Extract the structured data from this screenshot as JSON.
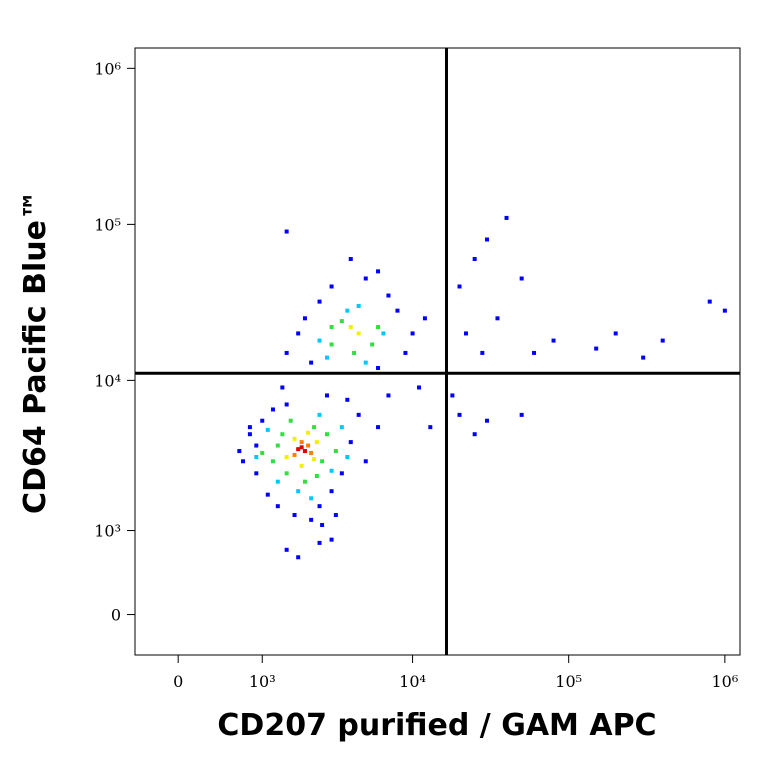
{
  "chart_data": {
    "type": "scatter",
    "x_label": "CD207 purified / GAM APC",
    "y_label": "CD64 Pacific Blue™",
    "scale": "biexponential",
    "xlim": [
      -430,
      1250000
    ],
    "ylim": [
      -400,
      1350000
    ],
    "xticks": [
      0,
      {
        "value": 1000,
        "label": "10³"
      },
      {
        "value": 10000,
        "label": "10⁴"
      },
      {
        "value": 100000,
        "label": "10⁵"
      },
      {
        "value": 1000000,
        "label": "10⁶"
      }
    ],
    "yticks": [
      0,
      {
        "value": 1000,
        "label": "10³"
      },
      {
        "value": 10000,
        "label": "10⁴"
      },
      {
        "value": 100000,
        "label": "10⁵"
      },
      {
        "value": 1000000,
        "label": "10⁶"
      }
    ],
    "gates": {
      "x": 16500,
      "y": 11100
    },
    "series": [
      {
        "color": "#0000ff",
        "x": [
          700,
          800,
          900,
          1000,
          1100,
          1200,
          900,
          1300,
          1500,
          2500,
          3000,
          3500,
          4000,
          4500,
          3800,
          2800,
          2200,
          1700,
          1400,
          800,
          650,
          2600,
          3200,
          5000,
          6000,
          7000,
          1500,
          2000,
          2500,
          3000,
          5000,
          7000,
          8000,
          9000,
          10000,
          12000,
          1800,
          2200,
          6000,
          11000,
          13000,
          4000,
          6000,
          1500,
          20000,
          25000,
          30000,
          40000,
          35000,
          28000,
          22000,
          50000,
          60000,
          80000,
          150000,
          200000,
          300000,
          400000,
          800000,
          1000000,
          20000,
          30000,
          50000,
          25000,
          18000,
          1500,
          2500,
          3000,
          1800
        ],
        "y": [
          3000,
          4500,
          2500,
          5500,
          1800,
          6500,
          3800,
          1500,
          7000,
          1500,
          1900,
          2500,
          4000,
          6000,
          7500,
          8000,
          1200,
          1300,
          9000,
          5000,
          3500,
          1100,
          1300,
          3000,
          5000,
          8000,
          15000,
          25000,
          32000,
          40000,
          45000,
          35000,
          28000,
          15000,
          20000,
          25000,
          20000,
          13000,
          12000,
          9000,
          5000,
          60000,
          50000,
          90000,
          40000,
          60000,
          80000,
          110000,
          25000,
          15000,
          20000,
          45000,
          15000,
          18000,
          16000,
          20000,
          14000,
          18000,
          32000,
          28000,
          6000,
          5500,
          6000,
          4500,
          8000,
          700,
          800,
          850,
          600
        ]
      },
      {
        "color": "#00c8ff",
        "x": [
          900,
          1100,
          1300,
          3000,
          3500,
          2500,
          1800,
          3800,
          2200,
          2500,
          3800,
          6500,
          5000,
          2800,
          4500
        ],
        "y": [
          3200,
          4800,
          2200,
          2600,
          5000,
          6000,
          1900,
          3200,
          1700,
          18000,
          28000,
          20000,
          13000,
          14000,
          30000
        ]
      },
      {
        "color": "#30e040",
        "x": [
          1200,
          1400,
          1500,
          2600,
          2800,
          2300,
          1300,
          3200,
          2000,
          1600,
          2400,
          1000,
          3000,
          3500,
          5500,
          6000,
          4200,
          3000
        ],
        "y": [
          3000,
          4500,
          2500,
          3000,
          4500,
          5000,
          3800,
          3500,
          2200,
          5500,
          2400,
          3400,
          17000,
          24000,
          17000,
          22000,
          15000,
          22000
        ]
      },
      {
        "color": "#f0f000",
        "x": [
          1500,
          1700,
          2300,
          2400,
          1900,
          2100,
          4500,
          4000
        ],
        "y": [
          3200,
          4200,
          3100,
          4000,
          2800,
          4600,
          20000,
          22000
        ]
      },
      {
        "color": "#ff8000",
        "x": [
          1700,
          2100,
          1900,
          2200
        ],
        "y": [
          3300,
          3800,
          4000,
          3400
        ]
      },
      {
        "color": "#e00000",
        "x": [
          1800,
          2000,
          1900
        ],
        "y": [
          3600,
          3500,
          3700
        ]
      }
    ]
  }
}
